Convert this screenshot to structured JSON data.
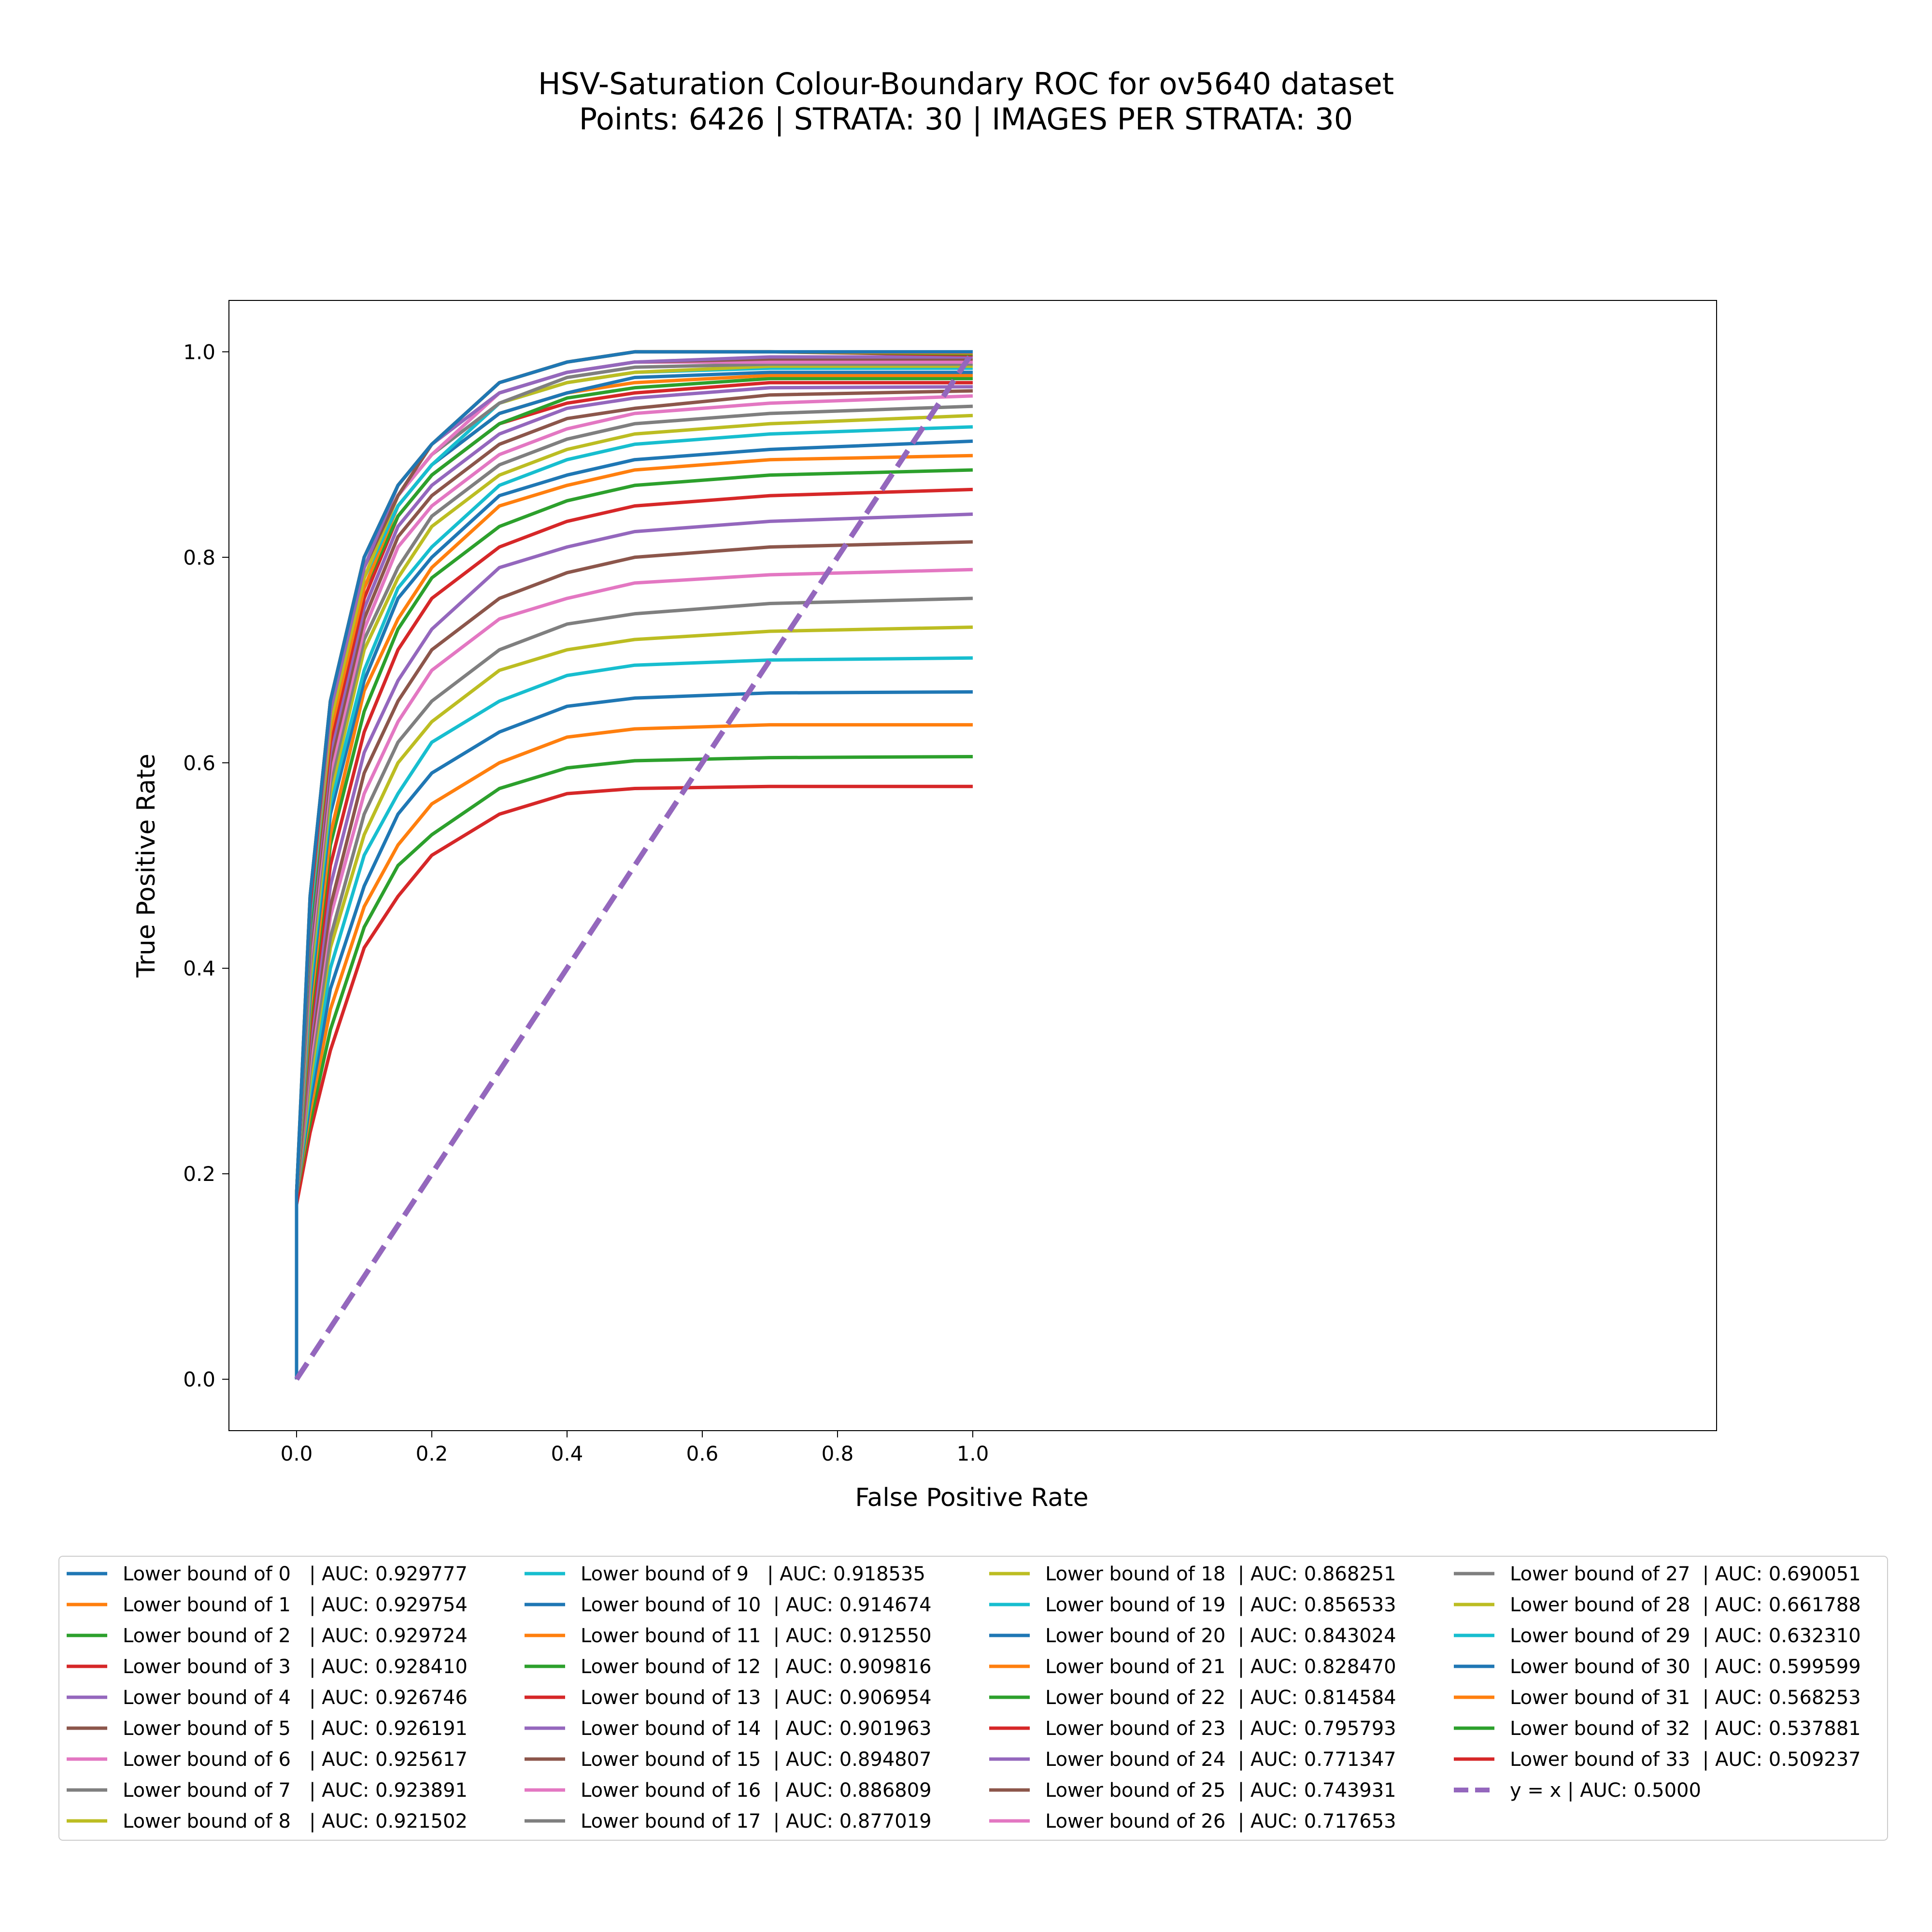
{
  "chart_data": {
    "type": "line",
    "title": "HSV-Saturation Colour-Boundary ROC for ov5640 dataset",
    "subtitle": "Points: 6426 | STRATA: 30 | IMAGES PER STRATA: 30",
    "xlabel": "False Positive Rate",
    "ylabel": "True Positive Rate",
    "xlim": [
      -0.1,
      2.1
    ],
    "ylim": [
      -0.05,
      1.05
    ],
    "x_ticks": [
      "0.0",
      "0.2",
      "0.4",
      "0.6",
      "0.8",
      "1.0"
    ],
    "y_ticks": [
      "0.0",
      "0.2",
      "0.4",
      "0.6",
      "0.8",
      "1.0"
    ],
    "grid": false,
    "legend_position": "bottom",
    "series": [
      {
        "name": "Lower bound of 0   | AUC: 0.929777",
        "color": "#1f77b4",
        "x": [
          0.0,
          0.0,
          0.02,
          0.05,
          0.1,
          0.15,
          0.2,
          0.3,
          0.4,
          0.5,
          0.7,
          1.0
        ],
        "y": [
          0.0,
          0.18,
          0.47,
          0.66,
          0.8,
          0.87,
          0.91,
          0.97,
          0.99,
          1.0,
          1.0,
          1.0
        ]
      },
      {
        "name": "Lower bound of 1   | AUC: 0.929754",
        "color": "#ff7f0e",
        "x": [
          0.0,
          0.0,
          0.02,
          0.05,
          0.1,
          0.15,
          0.2,
          0.3,
          0.4,
          0.5,
          0.7,
          1.0
        ],
        "y": [
          0.0,
          0.18,
          0.47,
          0.66,
          0.8,
          0.87,
          0.91,
          0.97,
          0.99,
          1.0,
          1.0,
          0.999
        ]
      },
      {
        "name": "Lower bound of 2   | AUC: 0.929724",
        "color": "#2ca02c",
        "x": [
          0.0,
          0.0,
          0.02,
          0.05,
          0.1,
          0.15,
          0.2,
          0.3,
          0.4,
          0.5,
          0.7,
          1.0
        ],
        "y": [
          0.0,
          0.18,
          0.47,
          0.66,
          0.8,
          0.87,
          0.91,
          0.97,
          0.99,
          1.0,
          1.0,
          0.998
        ]
      },
      {
        "name": "Lower bound of 3   | AUC: 0.928410",
        "color": "#d62728",
        "x": [
          0.0,
          0.0,
          0.02,
          0.05,
          0.1,
          0.15,
          0.2,
          0.3,
          0.4,
          0.5,
          0.7,
          1.0
        ],
        "y": [
          0.0,
          0.18,
          0.46,
          0.66,
          0.8,
          0.87,
          0.91,
          0.97,
          0.99,
          1.0,
          1.0,
          0.997
        ]
      },
      {
        "name": "Lower bound of 4   | AUC: 0.926746",
        "color": "#9467bd",
        "x": [
          0.0,
          0.0,
          0.02,
          0.05,
          0.1,
          0.15,
          0.2,
          0.3,
          0.4,
          0.5,
          0.7,
          1.0
        ],
        "y": [
          0.0,
          0.18,
          0.46,
          0.65,
          0.79,
          0.87,
          0.91,
          0.96,
          0.98,
          0.99,
          0.995,
          0.995
        ]
      },
      {
        "name": "Lower bound of 5   | AUC: 0.926191",
        "color": "#8c564b",
        "x": [
          0.0,
          0.0,
          0.02,
          0.05,
          0.1,
          0.15,
          0.2,
          0.3,
          0.4,
          0.5,
          0.7,
          1.0
        ],
        "y": [
          0.0,
          0.18,
          0.46,
          0.65,
          0.79,
          0.86,
          0.91,
          0.96,
          0.98,
          0.99,
          0.993,
          0.993
        ]
      },
      {
        "name": "Lower bound of 6   | AUC: 0.925617",
        "color": "#e377c2",
        "x": [
          0.0,
          0.0,
          0.02,
          0.05,
          0.1,
          0.15,
          0.2,
          0.3,
          0.4,
          0.5,
          0.7,
          1.0
        ],
        "y": [
          0.0,
          0.18,
          0.46,
          0.65,
          0.79,
          0.86,
          0.9,
          0.96,
          0.98,
          0.99,
          0.99,
          0.99
        ]
      },
      {
        "name": "Lower bound of 7   | AUC: 0.923891",
        "color": "#7f7f7f",
        "x": [
          0.0,
          0.0,
          0.02,
          0.05,
          0.1,
          0.15,
          0.2,
          0.3,
          0.4,
          0.5,
          0.7,
          1.0
        ],
        "y": [
          0.0,
          0.18,
          0.46,
          0.65,
          0.79,
          0.86,
          0.9,
          0.95,
          0.975,
          0.985,
          0.988,
          0.988
        ]
      },
      {
        "name": "Lower bound of 8   | AUC: 0.921502",
        "color": "#bcbd22",
        "x": [
          0.0,
          0.0,
          0.02,
          0.05,
          0.1,
          0.15,
          0.2,
          0.3,
          0.4,
          0.5,
          0.7,
          1.0
        ],
        "y": [
          0.0,
          0.18,
          0.46,
          0.64,
          0.78,
          0.86,
          0.9,
          0.95,
          0.97,
          0.98,
          0.986,
          0.986
        ]
      },
      {
        "name": "Lower bound of 9   | AUC: 0.918535",
        "color": "#17becf",
        "x": [
          0.0,
          0.0,
          0.02,
          0.05,
          0.1,
          0.15,
          0.2,
          0.3,
          0.4,
          0.5,
          0.7,
          1.0
        ],
        "y": [
          0.0,
          0.18,
          0.45,
          0.64,
          0.78,
          0.85,
          0.89,
          0.95,
          0.97,
          0.98,
          0.984,
          0.984
        ]
      },
      {
        "name": "Lower bound of 10  | AUC: 0.914674",
        "color": "#1f77b4",
        "x": [
          0.0,
          0.0,
          0.02,
          0.05,
          0.1,
          0.15,
          0.2,
          0.3,
          0.4,
          0.5,
          0.7,
          1.0
        ],
        "y": [
          0.0,
          0.18,
          0.45,
          0.64,
          0.78,
          0.85,
          0.89,
          0.94,
          0.96,
          0.975,
          0.98,
          0.98
        ]
      },
      {
        "name": "Lower bound of 11  | AUC: 0.912550",
        "color": "#ff7f0e",
        "x": [
          0.0,
          0.0,
          0.02,
          0.05,
          0.1,
          0.15,
          0.2,
          0.3,
          0.4,
          0.5,
          0.7,
          1.0
        ],
        "y": [
          0.0,
          0.18,
          0.45,
          0.63,
          0.77,
          0.85,
          0.89,
          0.94,
          0.96,
          0.97,
          0.977,
          0.977
        ]
      },
      {
        "name": "Lower bound of 12  | AUC: 0.909816",
        "color": "#2ca02c",
        "x": [
          0.0,
          0.0,
          0.02,
          0.05,
          0.1,
          0.15,
          0.2,
          0.3,
          0.4,
          0.5,
          0.7,
          1.0
        ],
        "y": [
          0.0,
          0.18,
          0.44,
          0.63,
          0.77,
          0.84,
          0.88,
          0.93,
          0.955,
          0.965,
          0.974,
          0.974
        ]
      },
      {
        "name": "Lower bound of 13  | AUC: 0.906954",
        "color": "#d62728",
        "x": [
          0.0,
          0.0,
          0.02,
          0.05,
          0.1,
          0.15,
          0.2,
          0.3,
          0.4,
          0.5,
          0.7,
          1.0
        ],
        "y": [
          0.0,
          0.18,
          0.44,
          0.62,
          0.76,
          0.84,
          0.88,
          0.93,
          0.95,
          0.96,
          0.97,
          0.97
        ]
      },
      {
        "name": "Lower bound of 14  | AUC: 0.901963",
        "color": "#9467bd",
        "x": [
          0.0,
          0.0,
          0.02,
          0.05,
          0.1,
          0.15,
          0.2,
          0.3,
          0.4,
          0.5,
          0.7,
          1.0
        ],
        "y": [
          0.0,
          0.18,
          0.43,
          0.61,
          0.75,
          0.83,
          0.87,
          0.92,
          0.945,
          0.955,
          0.965,
          0.966
        ]
      },
      {
        "name": "Lower bound of 15  | AUC: 0.894807",
        "color": "#8c564b",
        "x": [
          0.0,
          0.0,
          0.02,
          0.05,
          0.1,
          0.15,
          0.2,
          0.3,
          0.4,
          0.5,
          0.7,
          1.0
        ],
        "y": [
          0.0,
          0.18,
          0.42,
          0.6,
          0.74,
          0.82,
          0.86,
          0.91,
          0.935,
          0.945,
          0.958,
          0.962
        ]
      },
      {
        "name": "Lower bound of 16  | AUC: 0.886809",
        "color": "#e377c2",
        "x": [
          0.0,
          0.0,
          0.02,
          0.05,
          0.1,
          0.15,
          0.2,
          0.3,
          0.4,
          0.5,
          0.7,
          1.0
        ],
        "y": [
          0.0,
          0.18,
          0.41,
          0.59,
          0.73,
          0.81,
          0.85,
          0.9,
          0.925,
          0.94,
          0.95,
          0.957
        ]
      },
      {
        "name": "Lower bound of 17  | AUC: 0.877019",
        "color": "#7f7f7f",
        "x": [
          0.0,
          0.0,
          0.02,
          0.05,
          0.1,
          0.15,
          0.2,
          0.3,
          0.4,
          0.5,
          0.7,
          1.0
        ],
        "y": [
          0.0,
          0.18,
          0.4,
          0.58,
          0.72,
          0.79,
          0.84,
          0.89,
          0.915,
          0.93,
          0.94,
          0.947
        ]
      },
      {
        "name": "Lower bound of 18  | AUC: 0.868251",
        "color": "#bcbd22",
        "x": [
          0.0,
          0.0,
          0.02,
          0.05,
          0.1,
          0.15,
          0.2,
          0.3,
          0.4,
          0.5,
          0.7,
          1.0
        ],
        "y": [
          0.0,
          0.18,
          0.39,
          0.57,
          0.71,
          0.78,
          0.83,
          0.88,
          0.905,
          0.92,
          0.93,
          0.938
        ]
      },
      {
        "name": "Lower bound of 19  | AUC: 0.856533",
        "color": "#17becf",
        "x": [
          0.0,
          0.0,
          0.02,
          0.05,
          0.1,
          0.15,
          0.2,
          0.3,
          0.4,
          0.5,
          0.7,
          1.0
        ],
        "y": [
          0.0,
          0.18,
          0.38,
          0.56,
          0.69,
          0.77,
          0.81,
          0.87,
          0.895,
          0.91,
          0.92,
          0.927
        ]
      },
      {
        "name": "Lower bound of 20  | AUC: 0.843024",
        "color": "#1f77b4",
        "x": [
          0.0,
          0.0,
          0.02,
          0.05,
          0.1,
          0.15,
          0.2,
          0.3,
          0.4,
          0.5,
          0.7,
          1.0
        ],
        "y": [
          0.0,
          0.18,
          0.37,
          0.55,
          0.68,
          0.76,
          0.8,
          0.86,
          0.88,
          0.895,
          0.905,
          0.913
        ]
      },
      {
        "name": "Lower bound of 21  | AUC: 0.828470",
        "color": "#ff7f0e",
        "x": [
          0.0,
          0.0,
          0.02,
          0.05,
          0.1,
          0.15,
          0.2,
          0.3,
          0.4,
          0.5,
          0.7,
          1.0
        ],
        "y": [
          0.0,
          0.18,
          0.36,
          0.53,
          0.67,
          0.74,
          0.79,
          0.85,
          0.87,
          0.885,
          0.895,
          0.899
        ]
      },
      {
        "name": "Lower bound of 22  | AUC: 0.814584",
        "color": "#2ca02c",
        "x": [
          0.0,
          0.0,
          0.02,
          0.05,
          0.1,
          0.15,
          0.2,
          0.3,
          0.4,
          0.5,
          0.7,
          1.0
        ],
        "y": [
          0.0,
          0.18,
          0.35,
          0.52,
          0.65,
          0.73,
          0.78,
          0.83,
          0.855,
          0.87,
          0.88,
          0.885
        ]
      },
      {
        "name": "Lower bound of 23  | AUC: 0.795793",
        "color": "#d62728",
        "x": [
          0.0,
          0.0,
          0.02,
          0.05,
          0.1,
          0.15,
          0.2,
          0.3,
          0.4,
          0.5,
          0.7,
          1.0
        ],
        "y": [
          0.0,
          0.18,
          0.34,
          0.5,
          0.63,
          0.71,
          0.76,
          0.81,
          0.835,
          0.85,
          0.86,
          0.866
        ]
      },
      {
        "name": "Lower bound of 24  | AUC: 0.771347",
        "color": "#9467bd",
        "x": [
          0.0,
          0.0,
          0.02,
          0.05,
          0.1,
          0.15,
          0.2,
          0.3,
          0.4,
          0.5,
          0.7,
          1.0
        ],
        "y": [
          0.0,
          0.18,
          0.33,
          0.48,
          0.61,
          0.68,
          0.73,
          0.79,
          0.81,
          0.825,
          0.835,
          0.842
        ]
      },
      {
        "name": "Lower bound of 25  | AUC: 0.743931",
        "color": "#8c564b",
        "x": [
          0.0,
          0.0,
          0.02,
          0.05,
          0.1,
          0.15,
          0.2,
          0.3,
          0.4,
          0.5,
          0.7,
          1.0
        ],
        "y": [
          0.0,
          0.18,
          0.32,
          0.46,
          0.59,
          0.66,
          0.71,
          0.76,
          0.785,
          0.8,
          0.81,
          0.815
        ]
      },
      {
        "name": "Lower bound of 26  | AUC: 0.717653",
        "color": "#e377c2",
        "x": [
          0.0,
          0.0,
          0.02,
          0.05,
          0.1,
          0.15,
          0.2,
          0.3,
          0.4,
          0.5,
          0.7,
          1.0
        ],
        "y": [
          0.0,
          0.18,
          0.31,
          0.45,
          0.57,
          0.64,
          0.69,
          0.74,
          0.76,
          0.775,
          0.783,
          0.788
        ]
      },
      {
        "name": "Lower bound of 27  | AUC: 0.690051",
        "color": "#7f7f7f",
        "x": [
          0.0,
          0.0,
          0.02,
          0.05,
          0.1,
          0.15,
          0.2,
          0.3,
          0.4,
          0.5,
          0.7,
          1.0
        ],
        "y": [
          0.0,
          0.18,
          0.3,
          0.43,
          0.55,
          0.62,
          0.66,
          0.71,
          0.735,
          0.745,
          0.755,
          0.76
        ]
      },
      {
        "name": "Lower bound of 28  | AUC: 0.661788",
        "color": "#bcbd22",
        "x": [
          0.0,
          0.0,
          0.02,
          0.05,
          0.1,
          0.15,
          0.2,
          0.3,
          0.4,
          0.5,
          0.7,
          1.0
        ],
        "y": [
          0.0,
          0.18,
          0.29,
          0.42,
          0.53,
          0.6,
          0.64,
          0.69,
          0.71,
          0.72,
          0.728,
          0.732
        ]
      },
      {
        "name": "Lower bound of 29  | AUC: 0.632310",
        "color": "#17becf",
        "x": [
          0.0,
          0.0,
          0.02,
          0.05,
          0.1,
          0.15,
          0.2,
          0.3,
          0.4,
          0.5,
          0.7,
          1.0
        ],
        "y": [
          0.0,
          0.18,
          0.28,
          0.4,
          0.51,
          0.57,
          0.62,
          0.66,
          0.685,
          0.695,
          0.7,
          0.702
        ]
      },
      {
        "name": "Lower bound of 30  | AUC: 0.599599",
        "color": "#1f77b4",
        "x": [
          0.0,
          0.0,
          0.02,
          0.05,
          0.1,
          0.15,
          0.2,
          0.3,
          0.4,
          0.5,
          0.7,
          1.0
        ],
        "y": [
          0.0,
          0.18,
          0.27,
          0.38,
          0.48,
          0.55,
          0.59,
          0.63,
          0.655,
          0.663,
          0.668,
          0.669
        ]
      },
      {
        "name": "Lower bound of 31  | AUC: 0.568253",
        "color": "#ff7f0e",
        "x": [
          0.0,
          0.0,
          0.02,
          0.05,
          0.1,
          0.15,
          0.2,
          0.3,
          0.4,
          0.5,
          0.7,
          1.0
        ],
        "y": [
          0.0,
          0.18,
          0.26,
          0.36,
          0.46,
          0.52,
          0.56,
          0.6,
          0.625,
          0.633,
          0.637,
          0.637
        ]
      },
      {
        "name": "Lower bound of 32  | AUC: 0.537881",
        "color": "#2ca02c",
        "x": [
          0.0,
          0.0,
          0.02,
          0.05,
          0.1,
          0.15,
          0.2,
          0.3,
          0.4,
          0.5,
          0.7,
          1.0
        ],
        "y": [
          0.0,
          0.18,
          0.25,
          0.34,
          0.44,
          0.5,
          0.53,
          0.575,
          0.595,
          0.602,
          0.605,
          0.606
        ]
      },
      {
        "name": "Lower bound of 33  | AUC: 0.509237",
        "color": "#d62728",
        "x": [
          0.0,
          0.0,
          0.02,
          0.05,
          0.1,
          0.15,
          0.2,
          0.3,
          0.4,
          0.5,
          0.7,
          1.0
        ],
        "y": [
          0.0,
          0.17,
          0.24,
          0.32,
          0.42,
          0.47,
          0.51,
          0.55,
          0.57,
          0.575,
          0.577,
          0.577
        ]
      },
      {
        "name": "y = x | AUC: 0.5000",
        "color": "#9467bd",
        "dashed": true,
        "x": [
          0.0,
          1.0
        ],
        "y": [
          0.0,
          1.0
        ]
      }
    ]
  }
}
